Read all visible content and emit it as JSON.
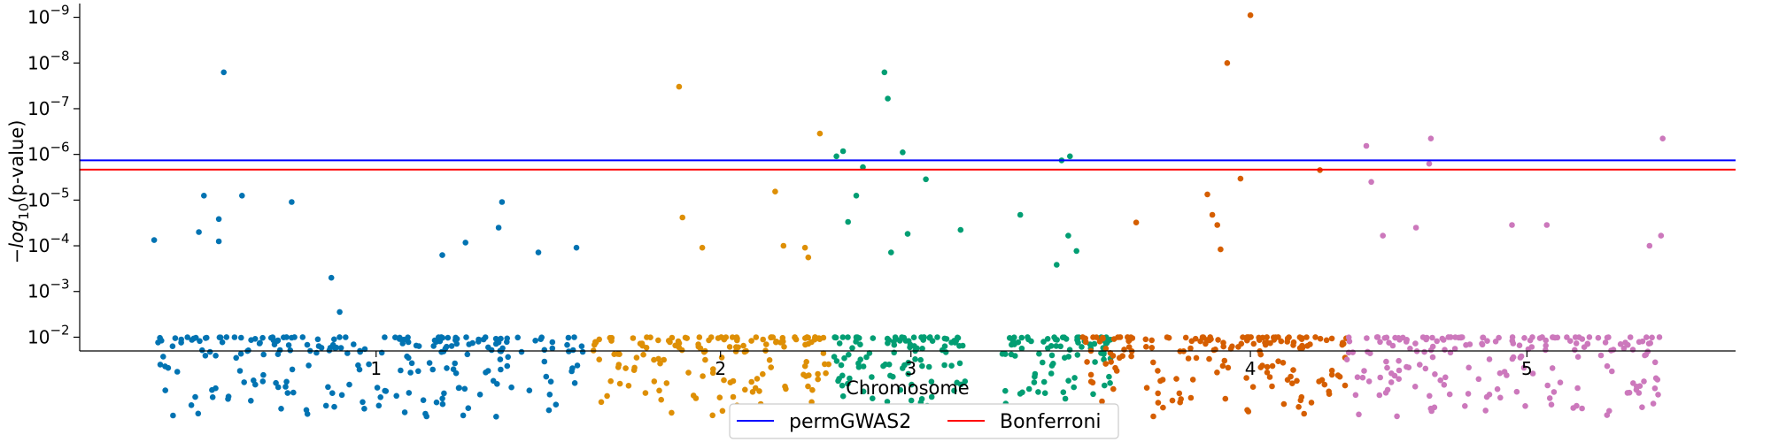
{
  "chart_data": {
    "type": "scatter",
    "xlabel": "Chromosome",
    "ylabel_prefix": "−log",
    "ylabel_sub": "10",
    "ylabel_suffix": "(p-value)",
    "y_scale": "log-reversed",
    "ylim": [
      0.02,
      5e-10
    ],
    "xlim": [
      0,
      1
    ],
    "x_ticks": [
      {
        "label": "1",
        "value": 0.179
      },
      {
        "label": "2",
        "value": 0.387
      },
      {
        "label": "3",
        "value": 0.502
      },
      {
        "label": "4",
        "value": 0.707
      },
      {
        "label": "5",
        "value": 0.874
      }
    ],
    "y_ticks": [
      {
        "base": "10",
        "exp": "−2",
        "value": 0.01
      },
      {
        "base": "10",
        "exp": "−3",
        "value": 0.001
      },
      {
        "base": "10",
        "exp": "−4",
        "value": 0.0001
      },
      {
        "base": "10",
        "exp": "−5",
        "value": 1e-05
      },
      {
        "base": "10",
        "exp": "−6",
        "value": 1e-06
      },
      {
        "base": "10",
        "exp": "−7",
        "value": 1e-07
      },
      {
        "base": "10",
        "exp": "−8",
        "value": 1e-08
      },
      {
        "base": "10",
        "exp": "−9",
        "value": 1e-09
      }
    ],
    "thresholds": [
      {
        "name": "permGWAS2",
        "value": 1.35e-06,
        "color": "#0000ff"
      },
      {
        "name": "Bonferroni",
        "value": 2.15e-06,
        "color": "#ff0000"
      }
    ],
    "legend_placement": "bottom-center",
    "grid": false,
    "series": [
      {
        "chromosome": "1",
        "color": "#0173b2",
        "x_range": [
          0.045,
          0.305
        ],
        "n_background": 230,
        "points": [
          [
            0.087,
            1.6e-08
          ],
          [
            0.075,
            8e-06
          ],
          [
            0.098,
            8e-06
          ],
          [
            0.084,
            2.6e-05
          ],
          [
            0.072,
            5e-05
          ],
          [
            0.084,
            8e-05
          ],
          [
            0.128,
            1.1e-05
          ],
          [
            0.045,
            7.5e-05
          ],
          [
            0.253,
            4e-05
          ],
          [
            0.255,
            1.1e-05
          ],
          [
            0.233,
            8.5e-05
          ],
          [
            0.219,
            0.00016
          ],
          [
            0.277,
            0.00014
          ],
          [
            0.3,
            0.00011
          ],
          [
            0.152,
            0.0005
          ],
          [
            0.157,
            0.0028
          ]
        ]
      },
      {
        "chromosome": "2",
        "color": "#de8f05",
        "x_range": [
          0.31,
          0.455
        ],
        "n_background": 150,
        "points": [
          [
            0.362,
            3.3e-08
          ],
          [
            0.364,
            2.4e-05
          ],
          [
            0.42,
            6.5e-06
          ],
          [
            0.447,
            3.5e-07
          ],
          [
            0.376,
            0.00011
          ],
          [
            0.425,
            0.0001
          ],
          [
            0.438,
            0.00011
          ],
          [
            0.44,
            0.00018
          ]
        ]
      },
      {
        "chromosome": "3a",
        "color": "#029e73",
        "x_range": [
          0.455,
          0.535
        ],
        "n_background": 110,
        "points": [
          [
            0.486,
            1.6e-08
          ],
          [
            0.488,
            6e-08
          ],
          [
            0.457,
            1.1e-06
          ],
          [
            0.461,
            8.5e-07
          ],
          [
            0.473,
            1.9e-06
          ],
          [
            0.497,
            9e-07
          ],
          [
            0.511,
            3.5e-06
          ],
          [
            0.469,
            8e-06
          ],
          [
            0.464,
            3e-05
          ],
          [
            0.5,
            5.5e-05
          ],
          [
            0.532,
            4.5e-05
          ],
          [
            0.49,
            0.00014
          ]
        ]
      },
      {
        "chromosome": "3b",
        "color": "#029e73",
        "x_range": [
          0.557,
          0.625
        ],
        "n_background": 85,
        "points": [
          [
            0.593,
            1.35e-06
          ],
          [
            0.598,
            1.1e-06
          ],
          [
            0.568,
            2.1e-05
          ],
          [
            0.597,
            6e-05
          ],
          [
            0.602,
            0.00013
          ],
          [
            0.59,
            0.00026
          ]
        ]
      },
      {
        "chromosome": "4",
        "color": "#d55e00",
        "x_range": [
          0.605,
          0.765
        ],
        "n_background": 170,
        "points": [
          [
            0.707,
            9e-10
          ],
          [
            0.693,
            1e-08
          ],
          [
            0.701,
            3.4e-06
          ],
          [
            0.681,
            7.5e-06
          ],
          [
            0.684,
            2.1e-05
          ],
          [
            0.687,
            3.5e-05
          ],
          [
            0.749,
            2.2e-06
          ],
          [
            0.638,
            3.1e-05
          ],
          [
            0.689,
            0.00012
          ]
        ]
      },
      {
        "chromosome": "5",
        "color": "#cc78bc",
        "x_range": [
          0.763,
          0.957
        ],
        "n_background": 190,
        "points": [
          [
            0.816,
            4.5e-07
          ],
          [
            0.956,
            4.5e-07
          ],
          [
            0.777,
            6.5e-07
          ],
          [
            0.815,
            1.6e-06
          ],
          [
            0.78,
            4e-06
          ],
          [
            0.787,
            6e-05
          ],
          [
            0.807,
            4e-05
          ],
          [
            0.865,
            3.5e-05
          ],
          [
            0.886,
            3.5e-05
          ],
          [
            0.955,
            6e-05
          ],
          [
            0.948,
            0.0001
          ]
        ]
      }
    ]
  }
}
